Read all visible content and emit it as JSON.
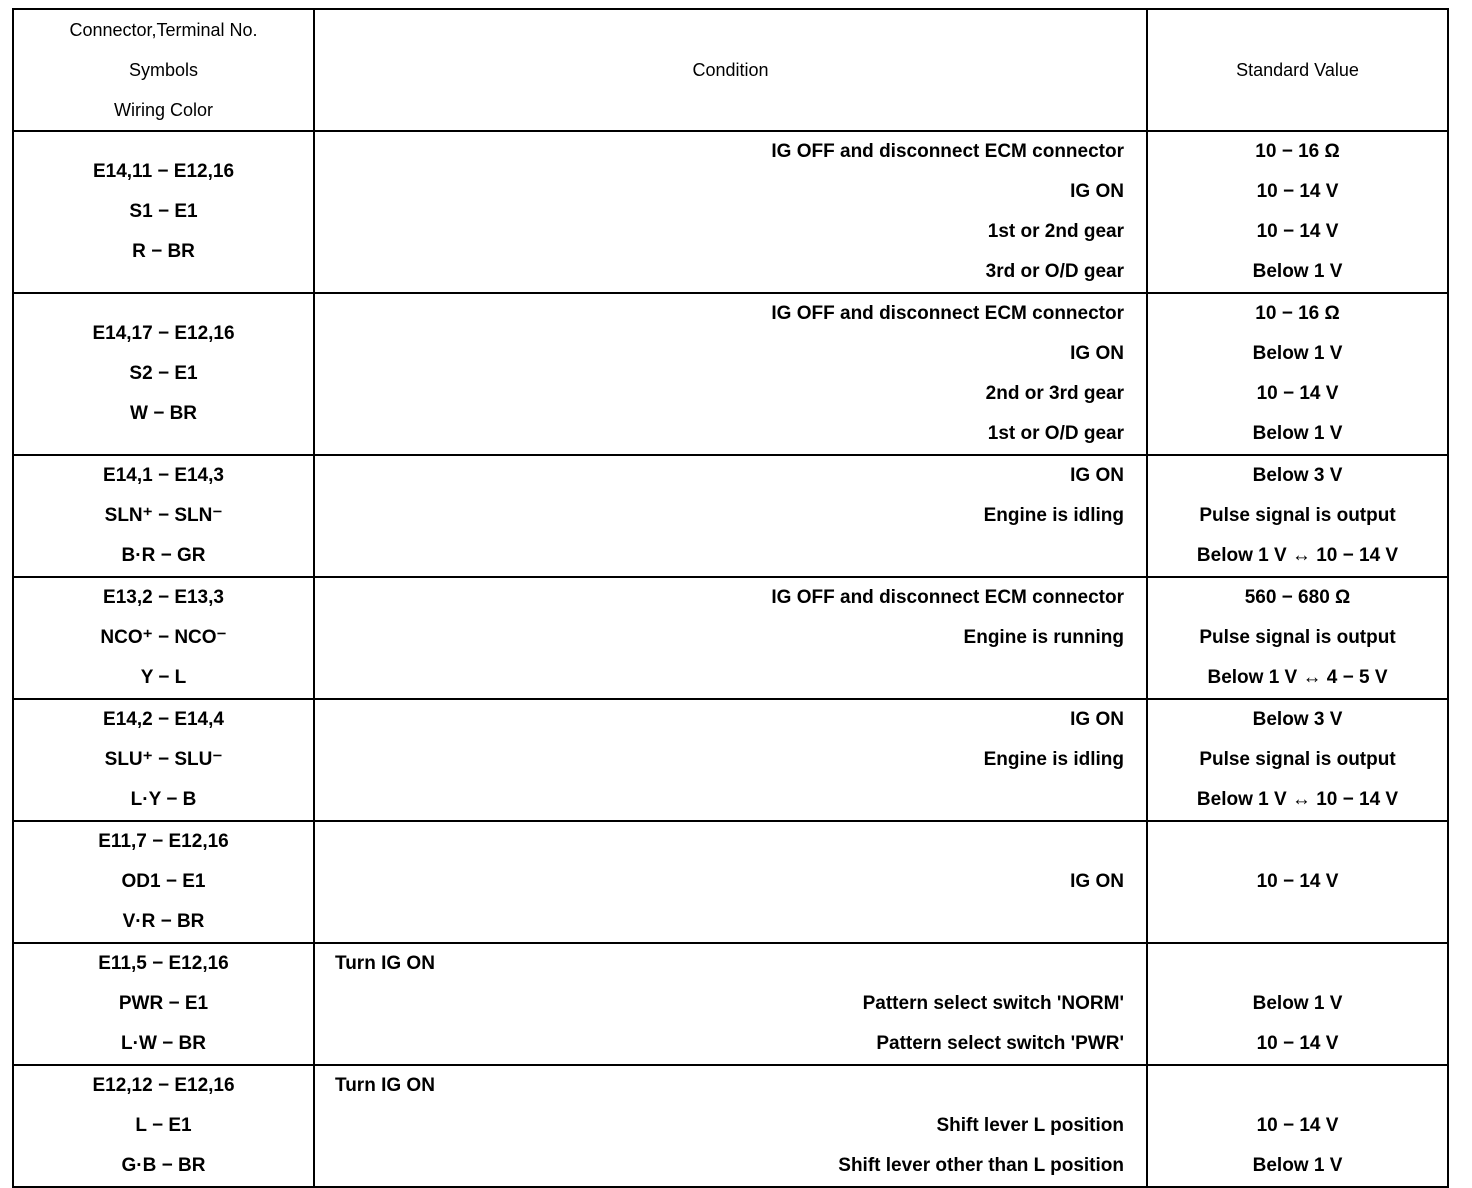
{
  "header": {
    "col1": [
      "Connector,Terminal No.",
      "Symbols",
      "Wiring Color"
    ],
    "col2": "Condition",
    "col3": "Standard Value"
  },
  "rows": [
    {
      "terminals": [
        "E14,11 − E12,16",
        "S1 − E1",
        "R − BR"
      ],
      "note": "",
      "conditions": [
        "IG OFF and disconnect ECM connector",
        "IG ON",
        "1st or 2nd gear",
        "3rd or O/D gear"
      ],
      "values": [
        "10 − 16 Ω",
        "10 − 14 V",
        "10 − 14 V",
        "Below 1 V"
      ]
    },
    {
      "terminals": [
        "E14,17 − E12,16",
        "S2 − E1",
        "W − BR"
      ],
      "note": "",
      "conditions": [
        "IG OFF and disconnect ECM connector",
        "IG ON",
        "2nd or 3rd gear",
        "1st or O/D gear"
      ],
      "values": [
        "10 − 16 Ω",
        "Below 1 V",
        "10 − 14 V",
        "Below 1 V"
      ]
    },
    {
      "terminals": [
        "E14,1 − E14,3",
        "SLN⁺ − SLN⁻",
        "B·R − GR"
      ],
      "note": "",
      "conditions": [
        "IG ON",
        "Engine is idling",
        ""
      ],
      "values": [
        "Below 3 V",
        "Pulse signal is output",
        "Below 1 V ↔ 10 − 14 V"
      ]
    },
    {
      "terminals": [
        "E13,2 − E13,3",
        "NCO⁺ − NCO⁻",
        "Y − L"
      ],
      "note": "",
      "conditions": [
        "IG OFF and disconnect ECM connector",
        "Engine is running",
        ""
      ],
      "values": [
        "560 − 680 Ω",
        "Pulse signal is output",
        "Below 1 V ↔ 4 − 5 V"
      ]
    },
    {
      "terminals": [
        "E14,2 − E14,4",
        "SLU⁺ − SLU⁻",
        "L·Y − B"
      ],
      "note": "",
      "conditions": [
        "IG ON",
        "Engine is idling",
        ""
      ],
      "values": [
        "Below 3 V",
        "Pulse signal is output",
        "Below 1 V ↔ 10 − 14 V"
      ]
    },
    {
      "terminals": [
        "E11,7 − E12,16",
        "OD1 − E1",
        "V·R − BR"
      ],
      "note": "",
      "conditions": [
        "",
        "IG ON",
        ""
      ],
      "values": [
        "",
        "10 − 14 V",
        ""
      ]
    },
    {
      "terminals": [
        "E11,5 − E12,16",
        "PWR − E1",
        "L·W − BR"
      ],
      "note": "Turn IG ON",
      "conditions": [
        "",
        "Pattern select switch 'NORM'",
        "Pattern select switch 'PWR'"
      ],
      "values": [
        "",
        "Below 1 V",
        "10 − 14 V"
      ]
    },
    {
      "terminals": [
        "E12,12 − E12,16",
        "L − E1",
        "G·B − BR"
      ],
      "note": "Turn IG ON",
      "conditions": [
        "",
        "Shift lever L position",
        "Shift lever other than L position"
      ],
      "values": [
        "",
        "10 − 14 V",
        "Below 1 V"
      ]
    }
  ]
}
